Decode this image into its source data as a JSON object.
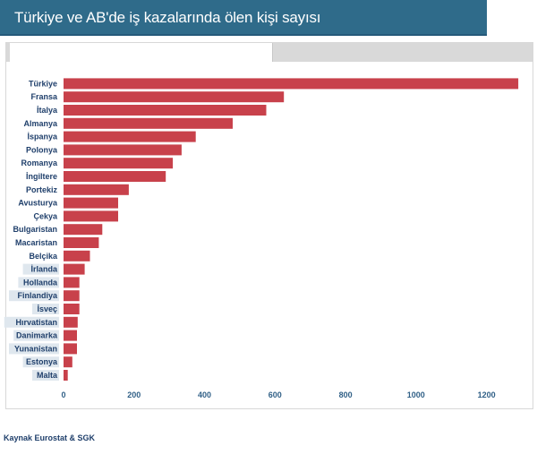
{
  "title": "Türkiye ve AB'de iş kazalarında ölen kişi sayısı",
  "source": "Kaynak Eurostat & SGK",
  "colors": {
    "header_bg": "#2f6b8a",
    "bar": "#c8414b",
    "label_text": "#1f3f6b",
    "tick_text": "#2f5f86",
    "tab_inactive": "#d9d9d9"
  },
  "chart_data": {
    "type": "bar",
    "orientation": "horizontal",
    "title": "Türkiye ve AB'de iş kazalarında ölen kişi sayısı",
    "xlabel": "",
    "ylabel": "",
    "xlim": [
      0,
      1300
    ],
    "x_ticks": [
      0,
      200,
      400,
      600,
      800,
      1000,
      1200
    ],
    "grid": false,
    "legend": "none",
    "categories": [
      "Türkiye",
      "Fransa",
      "İtalya",
      "Almanya",
      "İspanya",
      "Polonya",
      "Romanya",
      "İngiltere",
      "Portekiz",
      "Avusturya",
      "Çekya",
      "Bulgaristan",
      "Macaristan",
      "Belçika",
      "İrlanda",
      "Hollanda",
      "Finlandiya",
      "İsveç",
      "Hırvatistan",
      "Danimarka",
      "Yunanistan",
      "Estonya",
      "Malta"
    ],
    "values": [
      1290,
      625,
      575,
      480,
      375,
      335,
      310,
      290,
      185,
      155,
      155,
      110,
      100,
      75,
      60,
      45,
      45,
      45,
      40,
      38,
      38,
      25,
      12
    ],
    "highlighted_labels": [
      "İrlanda",
      "Hollanda",
      "Finlandiya",
      "İsveç",
      "Hırvatistan",
      "Danimarka",
      "Yunanistan",
      "Estonya",
      "Malta"
    ]
  }
}
